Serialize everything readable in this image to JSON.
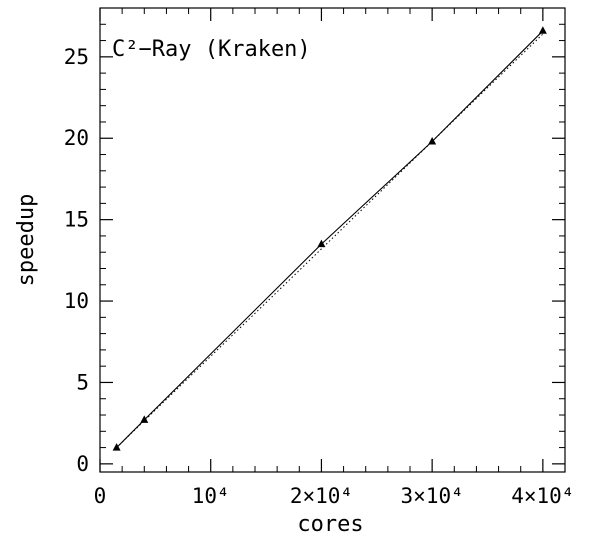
{
  "chart_data": {
    "type": "line",
    "title": "C²−Ray (Kraken)",
    "xlabel": "cores",
    "ylabel": "speedup",
    "xlim": [
      0,
      42000
    ],
    "ylim": [
      -0.5,
      28
    ],
    "x_ticks": [
      {
        "value": 0,
        "label": "0"
      },
      {
        "value": 10000,
        "label": "10⁴"
      },
      {
        "value": 20000,
        "label": "2×10⁴"
      },
      {
        "value": 30000,
        "label": "3×10⁴"
      },
      {
        "value": 40000,
        "label": "4×10⁴"
      }
    ],
    "y_ticks": [
      {
        "value": 0,
        "label": "0"
      },
      {
        "value": 5,
        "label": "5"
      },
      {
        "value": 10,
        "label": "10"
      },
      {
        "value": 15,
        "label": "15"
      },
      {
        "value": 20,
        "label": "20"
      },
      {
        "value": 25,
        "label": "25"
      }
    ],
    "series": [
      {
        "style": "solid-with-triangle-markers",
        "x": [
          1500,
          4000,
          20000,
          30000,
          40000
        ],
        "y": [
          1.0,
          2.7,
          13.5,
          19.8,
          26.6
        ]
      },
      {
        "style": "dotted",
        "x": [
          1500,
          40000
        ],
        "y": [
          1.0,
          26.4
        ]
      }
    ],
    "grid": false,
    "legend": "none"
  }
}
